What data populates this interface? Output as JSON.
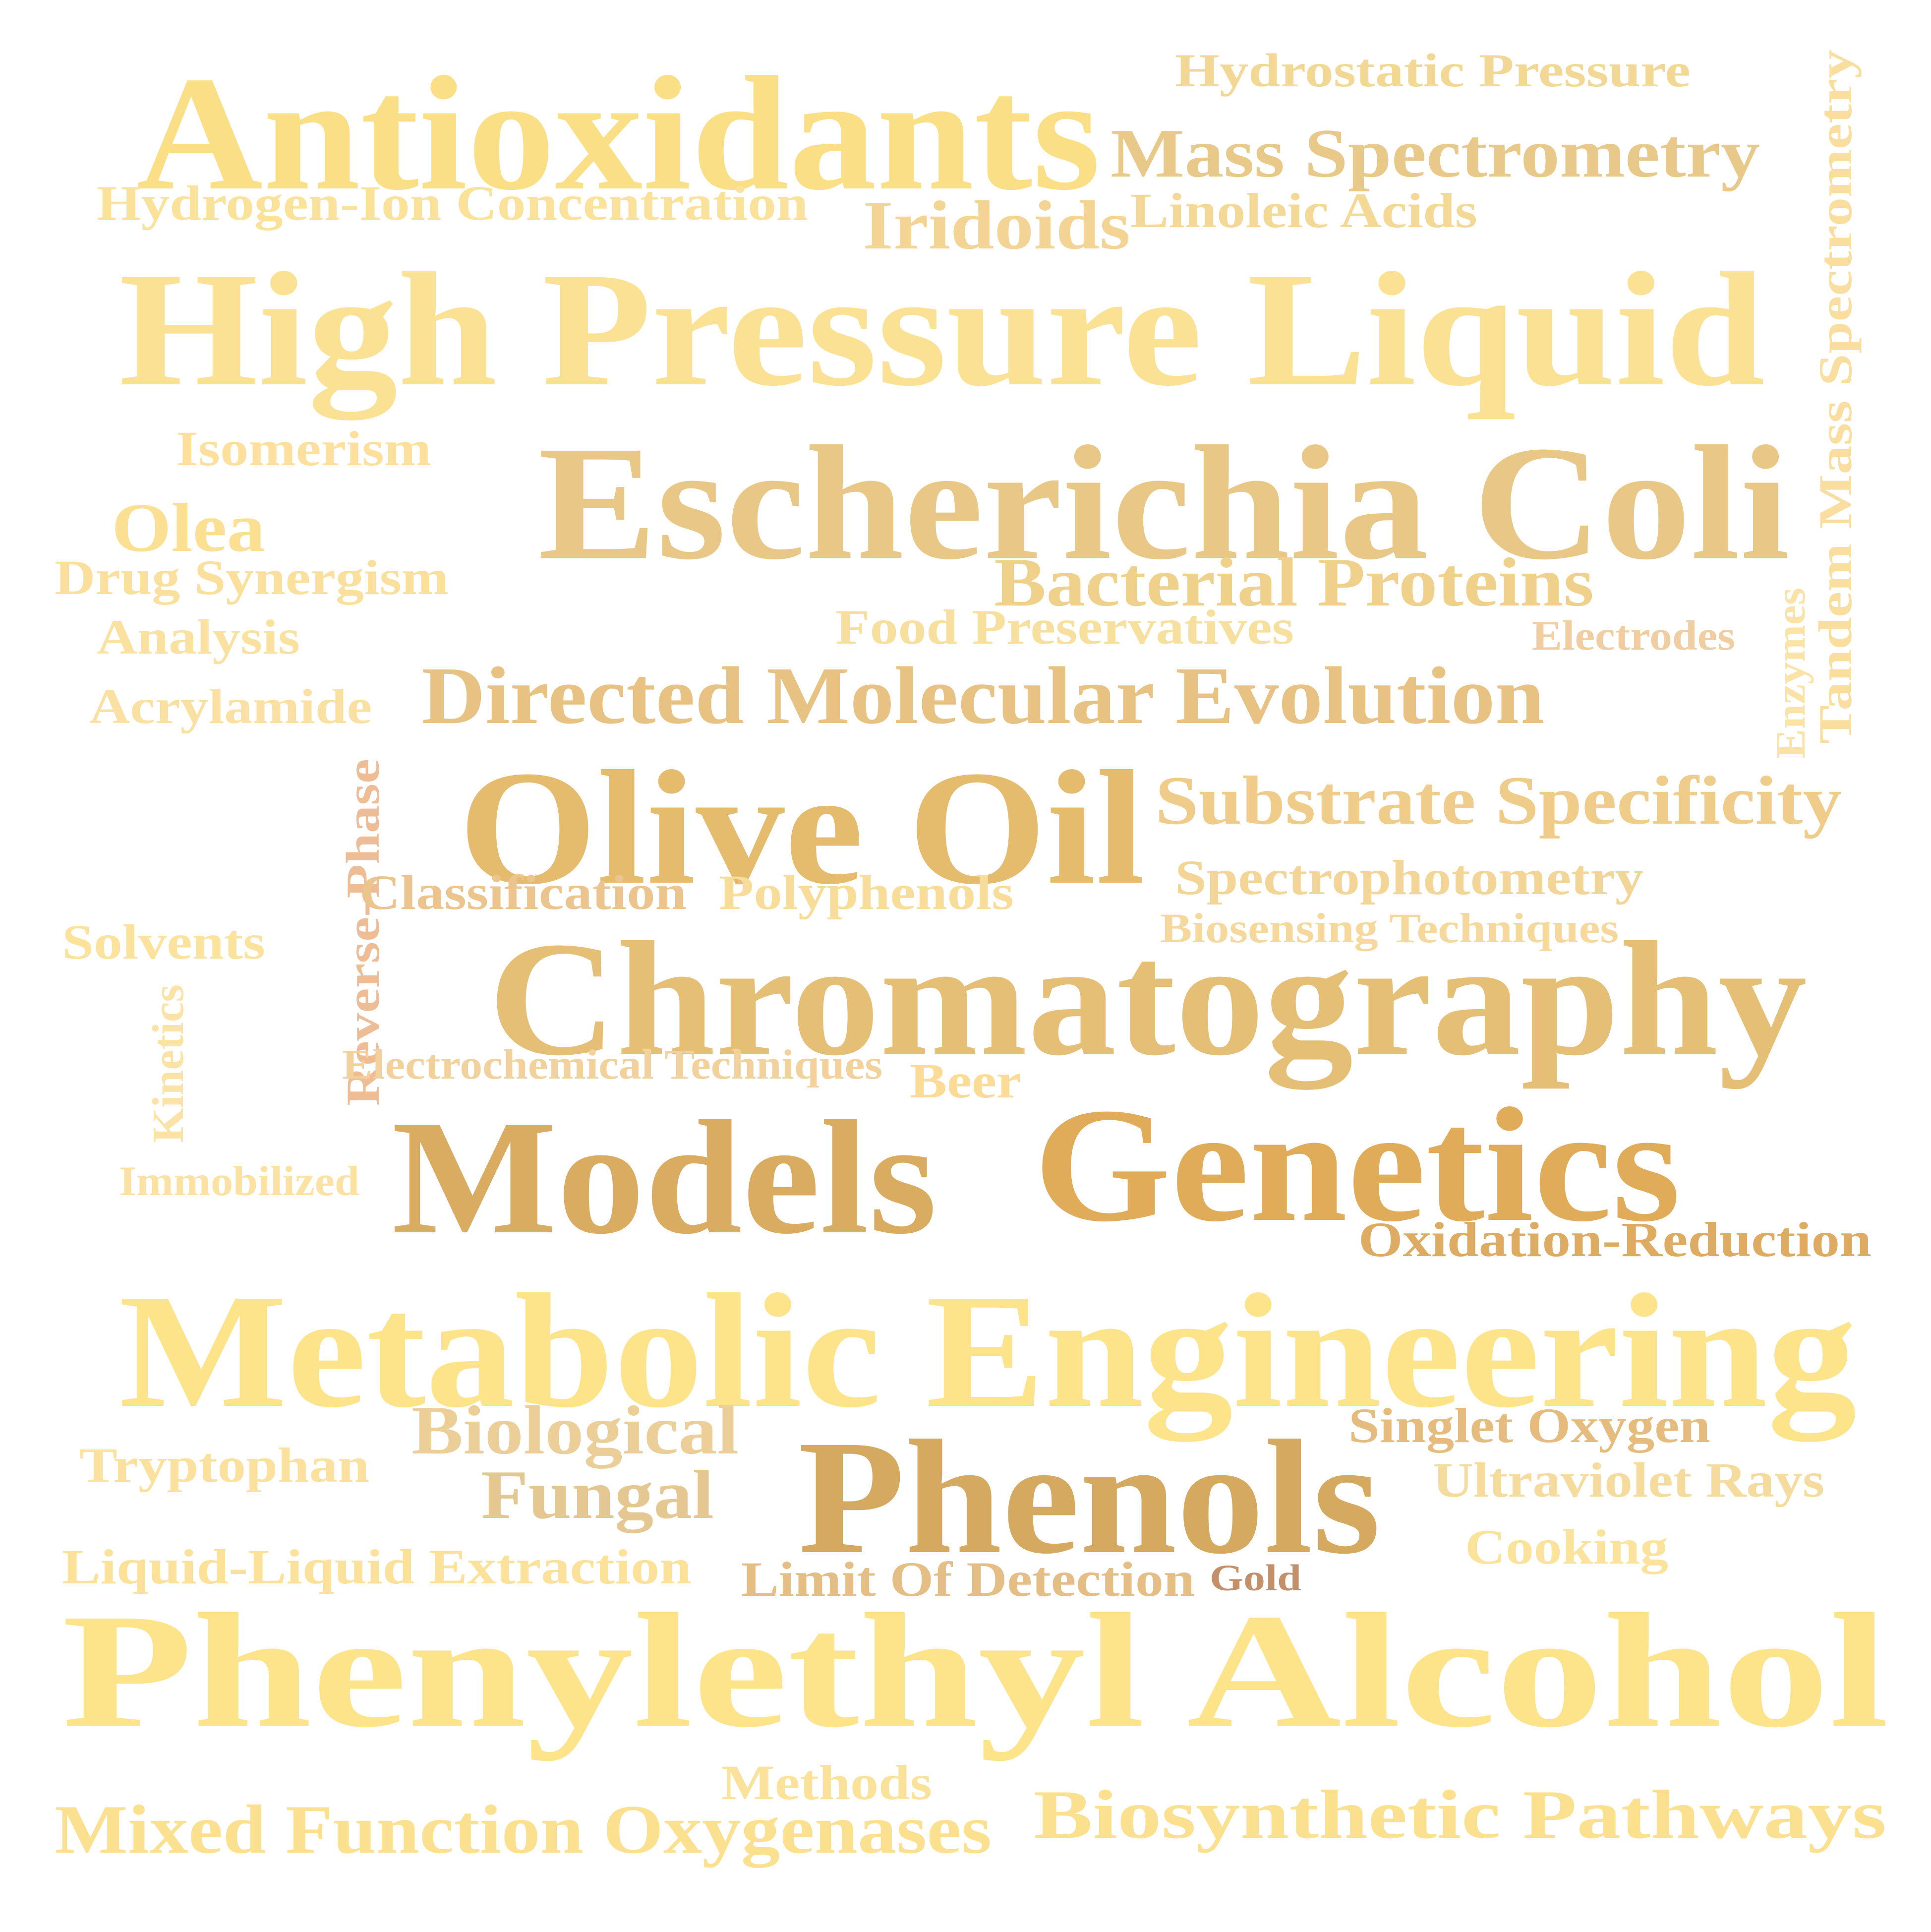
{
  "words": [
    {
      "text": "Antioxidants",
      "color": "#fbdf86"
    },
    {
      "text": "Hydrostatic Pressure",
      "color": "#f2d795"
    },
    {
      "text": "Mass Spectrometry",
      "color": "#e8c98a"
    },
    {
      "text": "Hydrogen-Ion Concentration",
      "color": "#fbe29a"
    },
    {
      "text": "Iridoids",
      "color": "#f3d495"
    },
    {
      "text": "Linoleic Acids",
      "color": "#f4d896"
    },
    {
      "text": "Tandem Mass Spectrometry",
      "color": "#f9dea0"
    },
    {
      "text": "High Pressure Liquid",
      "color": "#fbe193"
    },
    {
      "text": "Isomerism",
      "color": "#fde09d"
    },
    {
      "text": "Escherichia Coli",
      "color": "#e9c787"
    },
    {
      "text": "Olea",
      "color": "#fbe093"
    },
    {
      "text": "Drug Synergism",
      "color": "#fbe09d"
    },
    {
      "text": "Bacterial Proteins",
      "color": "#f0d18b"
    },
    {
      "text": "Analysis",
      "color": "#fbe1a0"
    },
    {
      "text": "Food Preservatives",
      "color": "#f7df9d"
    },
    {
      "text": "Electrodes",
      "color": "#f0cea1"
    },
    {
      "text": "Enzymes",
      "color": "#fbe3a8"
    },
    {
      "text": "Acrylamide",
      "color": "#fbe0a3"
    },
    {
      "text": "Directed Molecular Evolution",
      "color": "#e8c282"
    },
    {
      "text": "Olive Oil",
      "color": "#e5bb6d"
    },
    {
      "text": "Substrate Specificity",
      "color": "#f0cc8a"
    },
    {
      "text": "Reverse-Phase",
      "color": "#eebc95"
    },
    {
      "text": "Classification",
      "color": "#ecc48e"
    },
    {
      "text": "Polyphenols",
      "color": "#f8dd9a"
    },
    {
      "text": "Spectrophotometry",
      "color": "#f3d598"
    },
    {
      "text": "Biosensing Techniques",
      "color": "#f6d89d"
    },
    {
      "text": "Solvents",
      "color": "#fbe29d"
    },
    {
      "text": "Chromatography",
      "color": "#e6bf76"
    },
    {
      "text": "Kinetics",
      "color": "#fbe3a7"
    },
    {
      "text": "Electrochemical Techniques",
      "color": "#f3d19d"
    },
    {
      "text": "Beer",
      "color": "#fcdb97"
    },
    {
      "text": "Models",
      "color": "#d9ac62"
    },
    {
      "text": "Genetics",
      "color": "#e1ac59"
    },
    {
      "text": "Immobilized",
      "color": "#fbe1a2"
    },
    {
      "text": "Oxidation-Reduction",
      "color": "#deab63"
    },
    {
      "text": "Metabolic Engineering",
      "color": "#fde48b"
    },
    {
      "text": "Biological",
      "color": "#eccf98"
    },
    {
      "text": "Singlet Oxygen",
      "color": "#e6bc7e"
    },
    {
      "text": "Tryptophan",
      "color": "#fbe19d"
    },
    {
      "text": "Phenols",
      "color": "#d5a95f"
    },
    {
      "text": "Ultraviolet Rays",
      "color": "#f6db9f"
    },
    {
      "text": "Fungal",
      "color": "#e5c891"
    },
    {
      "text": "Cooking",
      "color": "#fbe39c"
    },
    {
      "text": "Liquid-Liquid Extraction",
      "color": "#fbe19a"
    },
    {
      "text": "Limit Of Detection",
      "color": "#e5be85"
    },
    {
      "text": "Gold",
      "color": "#c39069"
    },
    {
      "text": "Phenylethyl Alcohol",
      "color": "#fde48b"
    },
    {
      "text": "Methods",
      "color": "#fbe29a"
    },
    {
      "text": "Mixed Function Oxygenases",
      "color": "#fbe08f"
    },
    {
      "text": "Biosynthetic Pathways",
      "color": "#fbe08f"
    }
  ]
}
